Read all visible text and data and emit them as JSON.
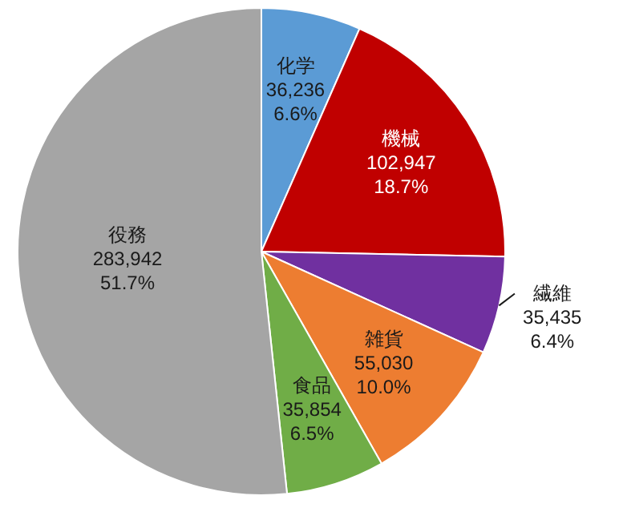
{
  "chart_data": {
    "type": "pie",
    "categories": [
      "化学",
      "機械",
      "繊維",
      "雑貨",
      "食品",
      "役務"
    ],
    "values": [
      36236,
      102947,
      35435,
      55030,
      35854,
      283942
    ],
    "colors": [
      "#5b9bd5",
      "#c00000",
      "#7030a0",
      "#ed7d31",
      "#70ad47",
      "#a5a5a5"
    ],
    "value_labels": [
      "36,236\n6.6%",
      "102,947\n18.7%",
      "35,435\n6.4%",
      "55,030\n10.0%",
      "35,854\n6.5%",
      "283,942\n51.7%"
    ]
  }
}
